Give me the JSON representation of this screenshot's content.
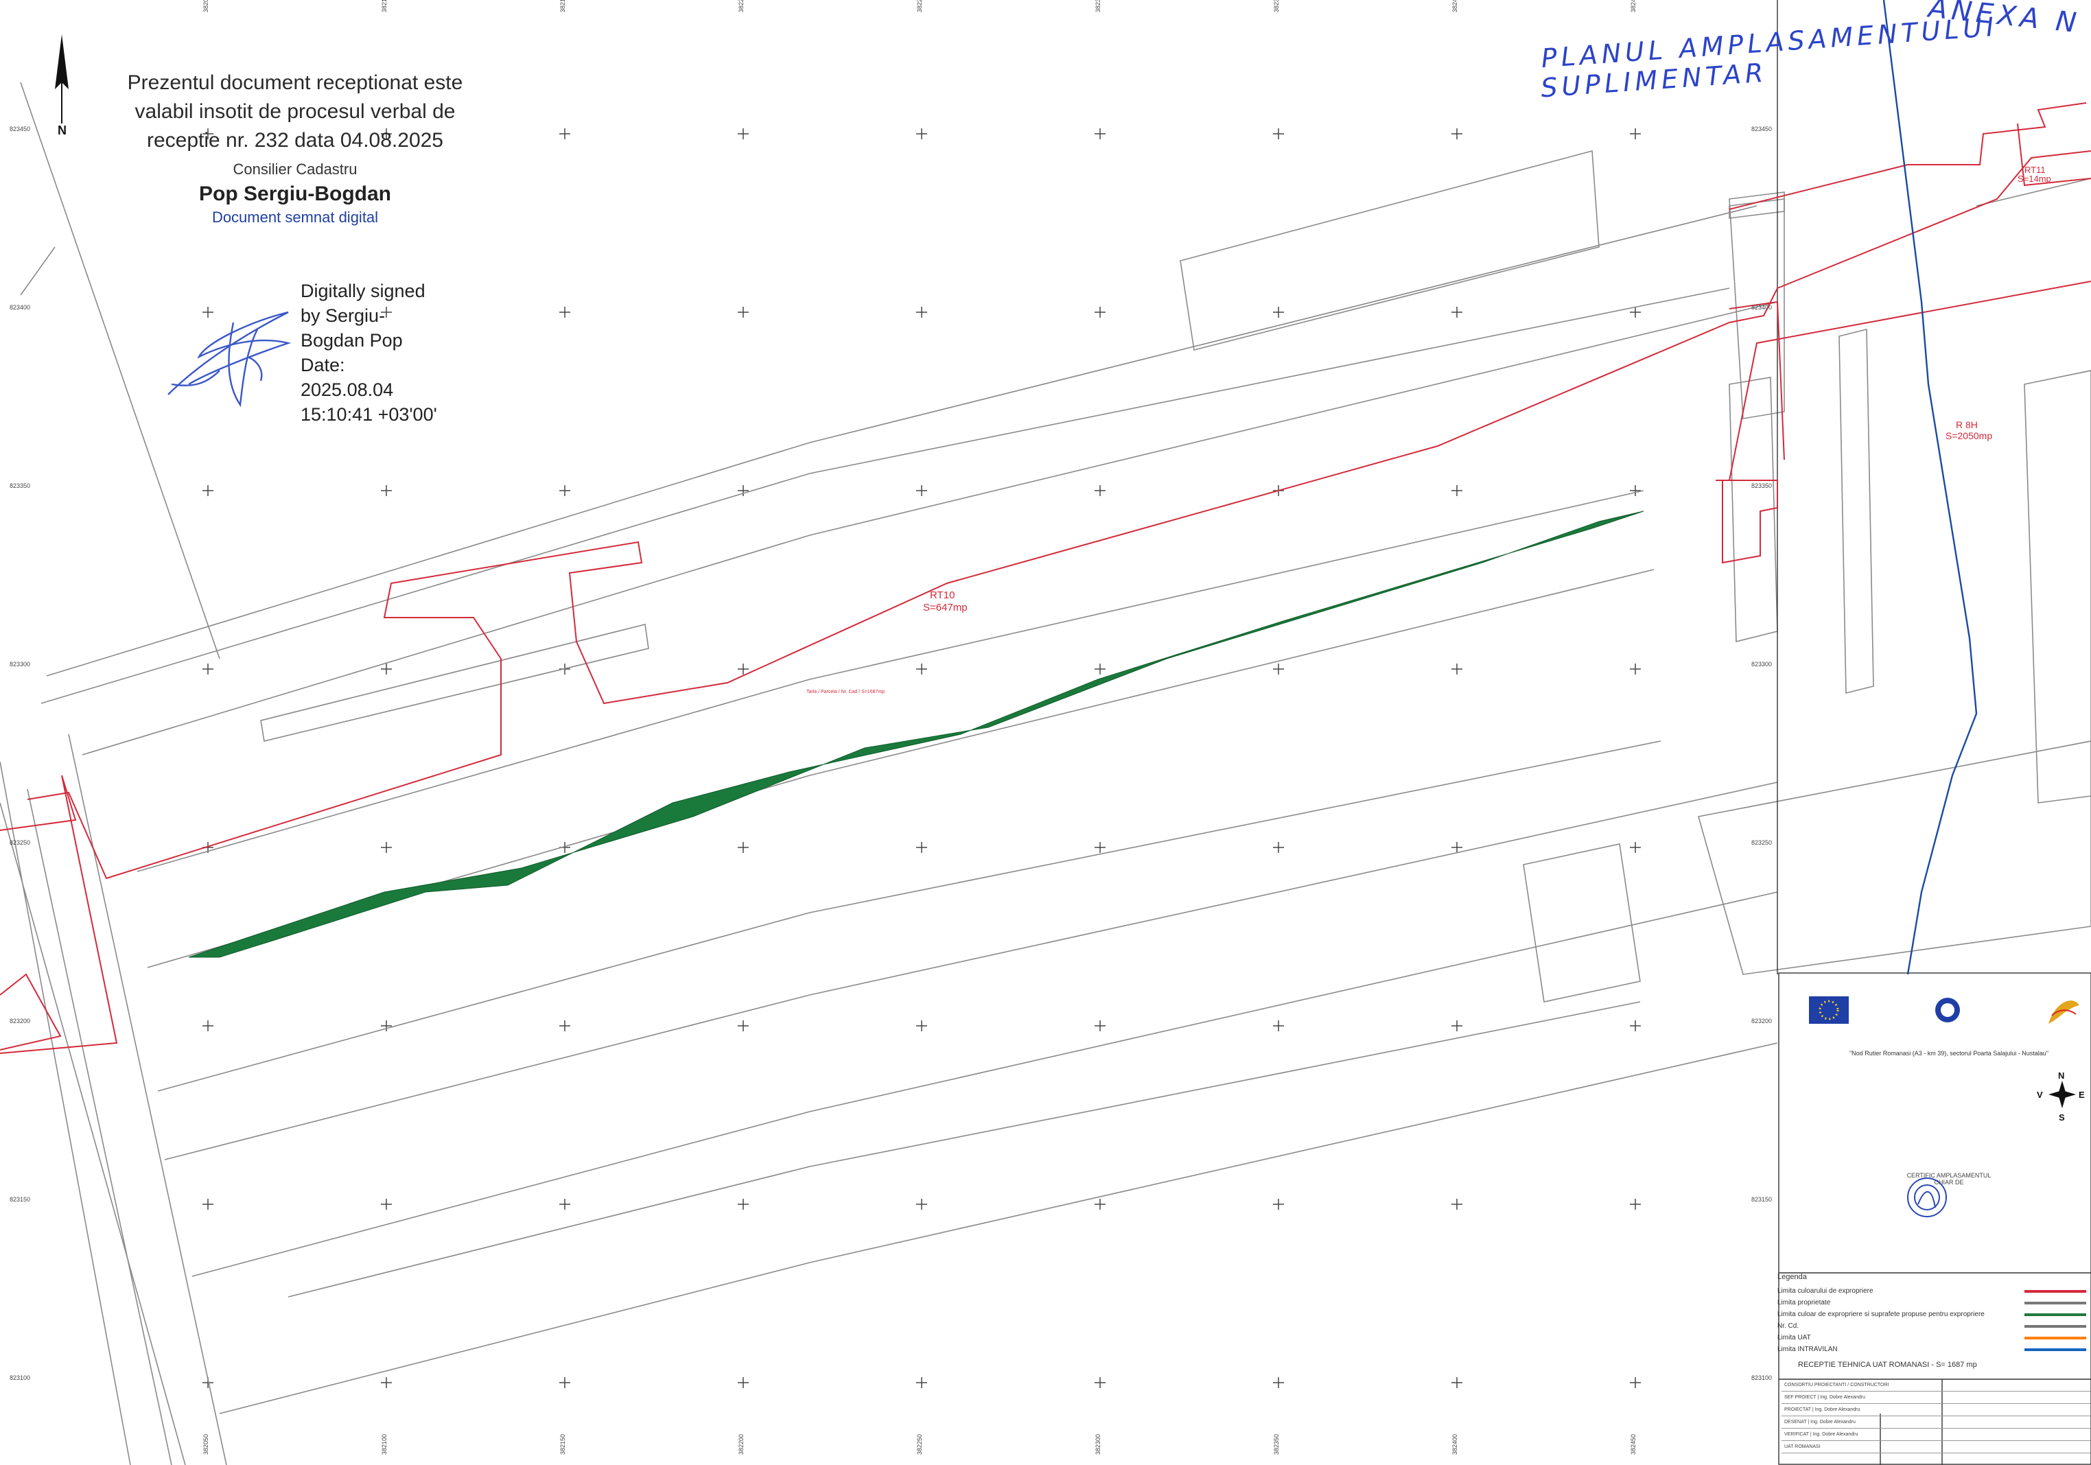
{
  "stamp": {
    "line1": "Prezentul document receptionat este",
    "line2": "valabil insotit de procesul verbal de",
    "line3": "receptie nr. 232 data 04.08.2025",
    "role": "Consilier Cadastru",
    "name": "Pop Sergiu-Bogdan",
    "signed": "Document semnat digital"
  },
  "digital_signature": {
    "lines": [
      "Digitally signed",
      "by Sergiu-",
      "Bogdan Pop",
      "Date:",
      "2025.08.04",
      "15:10:41 +03'00'"
    ]
  },
  "handwritten": {
    "line1": "PLANUL AMPLASAMENTULUI",
    "line2": "SUPLIMENTAR",
    "corner": "ANEXA N"
  },
  "north_arrow": {
    "label": "N"
  },
  "grid": {
    "x_labels": [
      "382050",
      "382100",
      "382150",
      "382200",
      "382250",
      "382300",
      "382350",
      "382400",
      "382450"
    ],
    "y_labels_left": [
      "823450",
      "823400",
      "823350",
      "823300",
      "823250",
      "823200",
      "823150",
      "823100"
    ],
    "y_labels_right": [
      "823450",
      "823400",
      "823350",
      "823300",
      "823250",
      "823200",
      "823150",
      "823100"
    ]
  },
  "parcels": {
    "rt10_label": "RT10",
    "rt10_area": "S=647mp",
    "rt11_label": "RT11",
    "rt11_area": "S=14mp",
    "r8_label": "R 8H",
    "r8_area": "S=2050mp",
    "centre_note": "Tarla / Parcela / Nr. Cad / S=1687mp"
  },
  "panel": {
    "project_title": "\"Nod Rutier Romanasi (A3 - km 39), sectorul Poarta Salajului - Nustalau\"",
    "compass": {
      "n": "N",
      "s": "S",
      "e": "E",
      "v": "V"
    },
    "certificate": "CERTIFIC AMPLASAMENTUL\nCHIAR DE"
  },
  "legend": {
    "title": "Legenda",
    "items": [
      {
        "label": "Limita culoarului de expropriere",
        "color": "#d32a3a"
      },
      {
        "label": "Limita proprietate",
        "color": "#7a7a7a"
      },
      {
        "label": "Limita culoar de expropriere si suprafete propuse pentru expropriere",
        "color": "#1f7a3c"
      },
      {
        "label": "Nr. Cd.",
        "color": "#777777"
      },
      {
        "label": "Limita UAT",
        "color": "#ff7f11"
      },
      {
        "label": "Limita INTRAVILAN",
        "color": "#1565c0"
      }
    ]
  },
  "reception": "RECEPTIE TEHNICA UAT ROMANASI - S= 1687 mp",
  "title_block": [
    "CONSORTIU PROIECTANTI / CONSTRUCTORI",
    "SEF PROIECT | Ing. Dobre Alexandru",
    "PROIECTAT | Ing. Dobre Alexandru",
    "DESENAT | Ing. Dobre Alexandru",
    "VERIFICAT | Ing. Dobre Alexandru",
    "UAT ROMANASI"
  ],
  "colors": {
    "expropriation": "#d32a3a",
    "property": "#8a8a8a",
    "strip": "#1f7a3c",
    "intravilan": "#1a4aa3",
    "cad_label": "#1f56c0"
  }
}
